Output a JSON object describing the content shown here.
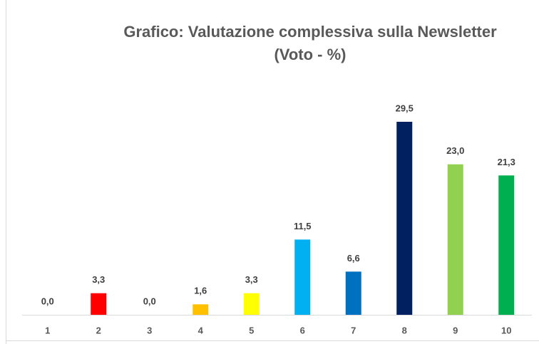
{
  "chart_data": {
    "type": "bar",
    "title": "Grafico: Valutazione complessiva sulla Newsletter",
    "subtitle": "(Voto - %)",
    "categories": [
      "1",
      "2",
      "3",
      "4",
      "5",
      "6",
      "7",
      "8",
      "9",
      "10"
    ],
    "values": [
      0,
      3.3,
      0,
      1.6,
      3.3,
      11.5,
      6.6,
      29.5,
      23.0,
      21.3
    ],
    "value_labels": [
      "0,0",
      "3,3",
      "0,0",
      "1,6",
      "3,3",
      "11,5",
      "6,6",
      "29,5",
      "23,0",
      "21,3"
    ],
    "colors": [
      null,
      "#ff0000",
      null,
      "#ffc000",
      "#ffff00",
      "#00b0f0",
      "#0070c0",
      "#002060",
      "#92d050",
      "#00b050"
    ]
  }
}
